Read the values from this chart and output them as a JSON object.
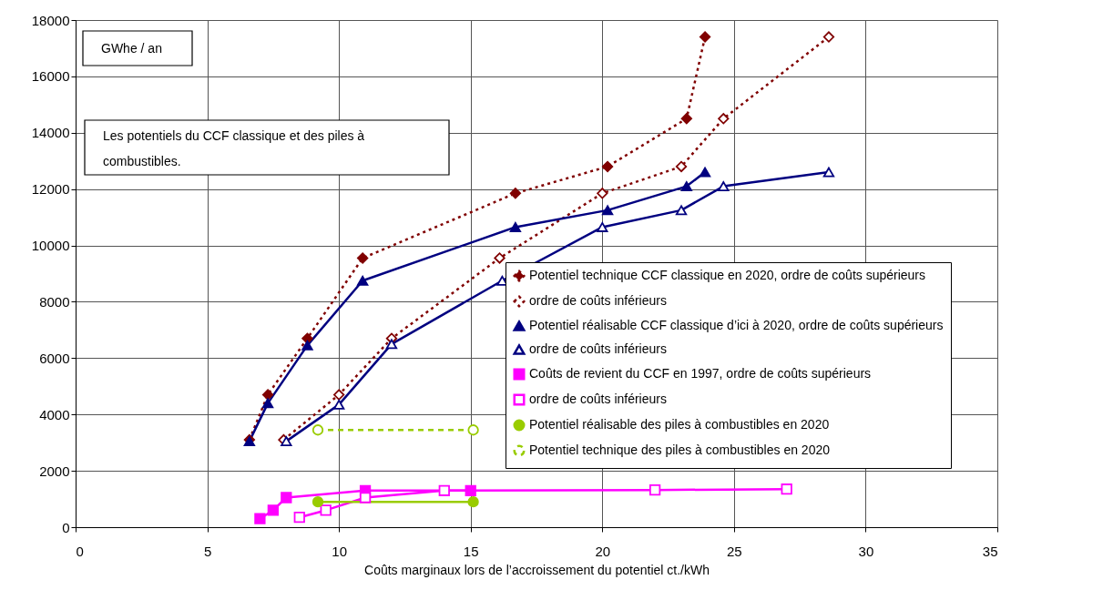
{
  "chart_data": {
    "type": "line",
    "title": "Les potentiels du CCF classique et des piles à combustibles.",
    "xlabel": "Coûts marginaux lors de l’accroissement du potentiel ct./kWh",
    "ylabel": "GWhe / an",
    "xlim": [
      0,
      35
    ],
    "xticks": [
      0,
      5,
      10,
      15,
      20,
      25,
      30,
      35
    ],
    "ylim": [
      0,
      18000
    ],
    "yticks": [
      0,
      2000,
      4000,
      6000,
      8000,
      10000,
      12000,
      14000,
      16000,
      18000
    ],
    "grid": true,
    "legend": "bottom right",
    "series": [
      {
        "name": "Potentiel technique CCF classique en 2020, ordre de coûts supérieurs",
        "color": "#800000",
        "marker": "diamond",
        "line_style": "dotted",
        "x": [
          6.6,
          7.3,
          8.8,
          10.9,
          16.7,
          20.2,
          23.2,
          23.9
        ],
        "values": [
          3100,
          4700,
          6700,
          9550,
          11850,
          12800,
          14500,
          17400
        ]
      },
      {
        "name": "ordre de coûts inférieurs",
        "color": "#800000",
        "marker": "diamond-open",
        "line_style": "dotted",
        "x": [
          7.9,
          10,
          12,
          16.1,
          20,
          23,
          24.6,
          28.6
        ],
        "values": [
          3100,
          4700,
          6700,
          9550,
          11850,
          12800,
          14500,
          17400
        ]
      },
      {
        "name": "Potentiel réalisable CCF classique d’ici à 2020, ordre de coûts supérieurs",
        "color": "#000080",
        "marker": "triangle",
        "line_style": "solid",
        "x": [
          6.6,
          7.3,
          8.8,
          10.9,
          16.7,
          20.2,
          23.2,
          23.9
        ],
        "values": [
          3050,
          4400,
          6450,
          8750,
          10650,
          11250,
          12100,
          12600
        ]
      },
      {
        "name": "ordre de coûts inférieurs",
        "color": "#000080",
        "marker": "triangle-open",
        "line_style": "solid",
        "x": [
          8,
          10,
          12,
          16.2,
          20,
          23,
          24.6,
          28.6
        ],
        "values": [
          3050,
          4350,
          6500,
          8750,
          10650,
          11250,
          12100,
          12600
        ]
      },
      {
        "name": "Coûts de revient du CCF en 1997, ordre de coûts supérieurs",
        "color": "#ff00ff",
        "marker": "square",
        "line_style": "solid",
        "x": [
          7,
          7.5,
          8,
          11,
          15
        ],
        "values": [
          300,
          600,
          1050,
          1300,
          1300
        ]
      },
      {
        "name": "ordre de coûts inférieurs",
        "color": "#ff00ff",
        "marker": "square-open",
        "line_style": "solid",
        "x": [
          8.5,
          9.5,
          11,
          14,
          22,
          27
        ],
        "values": [
          350,
          600,
          1050,
          1300,
          1320,
          1350
        ]
      },
      {
        "name": "Potentiel réalisable des piles à combustibles en 2020",
        "color": "#99cc00",
        "marker": "circle",
        "line_style": "solid",
        "x": [
          9.2,
          15.1
        ],
        "values": [
          900,
          900
        ]
      },
      {
        "name": "Potentiel technique des piles à combustibles  en 2020",
        "color": "#99cc00",
        "marker": "circle-open",
        "line_style": "dashed",
        "x": [
          9.2,
          15.1
        ],
        "values": [
          3450,
          3450
        ]
      }
    ]
  }
}
